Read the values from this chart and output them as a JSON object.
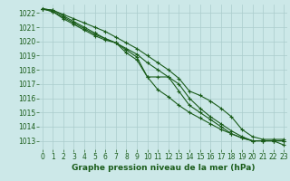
{
  "title": "Graphe pression niveau de la mer (hPa)",
  "background_color": "#cce8e8",
  "grid_color": "#aacccc",
  "line_color": "#1a5c1a",
  "x_ticks": [
    0,
    1,
    2,
    3,
    4,
    5,
    6,
    7,
    8,
    9,
    10,
    11,
    12,
    13,
    14,
    15,
    16,
    17,
    18,
    19,
    20,
    21,
    22,
    23
  ],
  "y_ticks": [
    1013,
    1014,
    1015,
    1016,
    1017,
    1018,
    1019,
    1020,
    1021,
    1022
  ],
  "ylim": [
    1012.4,
    1022.6
  ],
  "xlim": [
    -0.3,
    23.3
  ],
  "series": [
    [
      1022.3,
      1022.2,
      1021.9,
      1021.6,
      1021.3,
      1021.0,
      1020.7,
      1020.3,
      1019.9,
      1019.5,
      1019.0,
      1018.5,
      1018.0,
      1017.4,
      1016.5,
      1016.2,
      1015.8,
      1015.3,
      1014.7,
      1013.8,
      1013.3,
      1013.1,
      1013.1,
      1013.1
    ],
    [
      1022.3,
      1022.2,
      1021.8,
      1021.4,
      1021.0,
      1020.6,
      1020.2,
      1019.9,
      1019.2,
      1018.7,
      1017.5,
      1016.6,
      1016.1,
      1015.5,
      1015.0,
      1014.6,
      1014.2,
      1013.8,
      1013.5,
      1013.2,
      1013.0,
      1013.0,
      1013.0,
      1012.7
    ],
    [
      1022.3,
      1022.1,
      1021.7,
      1021.3,
      1020.9,
      1020.5,
      1020.2,
      1019.9,
      1019.4,
      1018.9,
      1017.5,
      1017.5,
      1017.5,
      1016.5,
      1015.5,
      1015.0,
      1014.5,
      1014.0,
      1013.5,
      1013.2,
      1013.0,
      1013.0,
      1013.0,
      1013.0
    ],
    [
      1022.3,
      1022.1,
      1021.6,
      1021.2,
      1020.8,
      1020.4,
      1020.1,
      1019.9,
      1019.5,
      1019.1,
      1018.5,
      1018.0,
      1017.5,
      1017.0,
      1016.0,
      1015.3,
      1014.7,
      1014.2,
      1013.7,
      1013.3,
      1013.0,
      1013.0,
      1013.0,
      1013.0
    ]
  ],
  "tick_fontsize": 5.5,
  "label_fontsize": 6.5,
  "linewidth": 0.8,
  "markersize": 3.0,
  "markeredgewidth": 0.8
}
